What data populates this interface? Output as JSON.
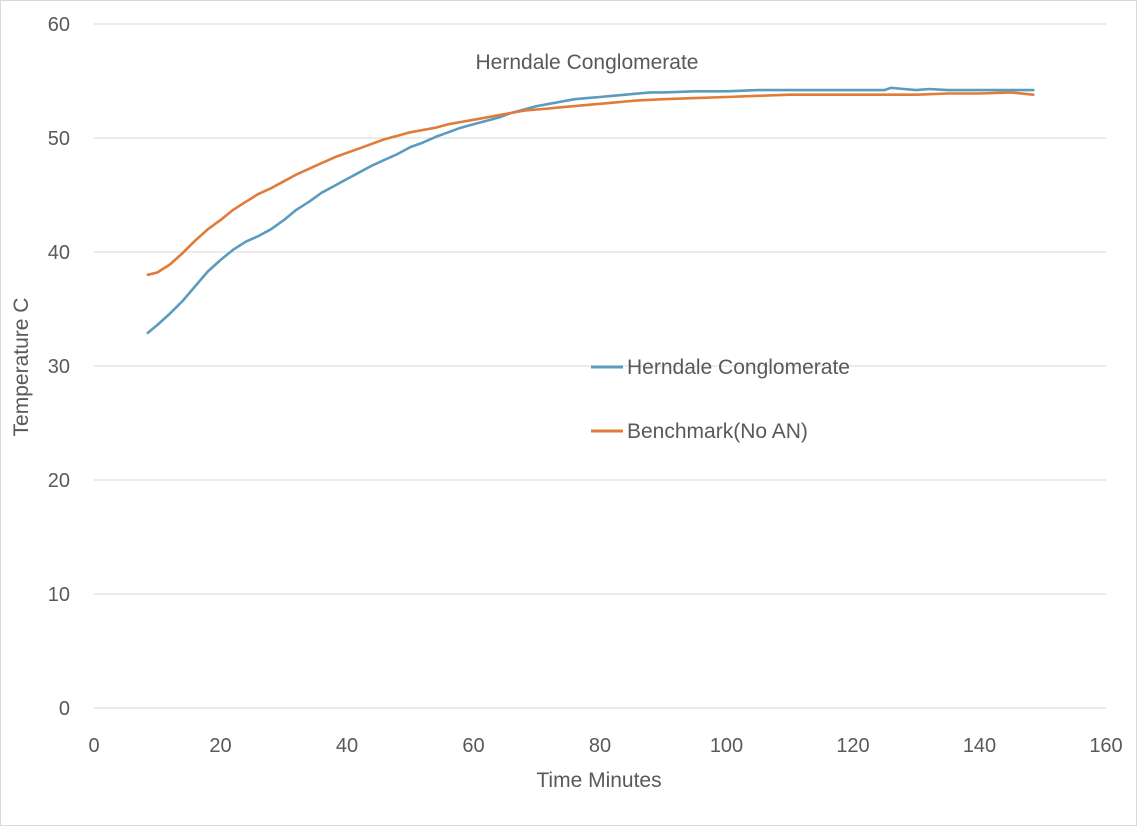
{
  "chart_data": {
    "type": "line",
    "title": "Herndale Conglomerate",
    "xlabel": "Time Minutes",
    "ylabel": "Temperature C",
    "xlim": [
      0,
      160
    ],
    "ylim": [
      0,
      60
    ],
    "x_ticks": [
      0,
      20,
      40,
      60,
      80,
      100,
      120,
      140,
      160
    ],
    "y_ticks": [
      0,
      10,
      20,
      30,
      40,
      50,
      60
    ],
    "grid": "horizontal",
    "legend_placement": "center-right",
    "series": [
      {
        "name": "Herndale Conglomerate",
        "color": "#5b9bbd",
        "points": [
          [
            8.5,
            32.9
          ],
          [
            10,
            33.6
          ],
          [
            12,
            34.6
          ],
          [
            14,
            35.7
          ],
          [
            16,
            37.0
          ],
          [
            18,
            38.3
          ],
          [
            20,
            39.3
          ],
          [
            22,
            40.2
          ],
          [
            24,
            40.9
          ],
          [
            26,
            41.4
          ],
          [
            28,
            42.0
          ],
          [
            30,
            42.8
          ],
          [
            32,
            43.7
          ],
          [
            34,
            44.4
          ],
          [
            36,
            45.2
          ],
          [
            38,
            45.8
          ],
          [
            40,
            46.4
          ],
          [
            42,
            47.0
          ],
          [
            44,
            47.6
          ],
          [
            46,
            48.1
          ],
          [
            48,
            48.6
          ],
          [
            50,
            49.2
          ],
          [
            52,
            49.6
          ],
          [
            54,
            50.1
          ],
          [
            56,
            50.5
          ],
          [
            58,
            50.9
          ],
          [
            60,
            51.2
          ],
          [
            62,
            51.5
          ],
          [
            64,
            51.8
          ],
          [
            66,
            52.2
          ],
          [
            68,
            52.5
          ],
          [
            70,
            52.8
          ],
          [
            72,
            53.0
          ],
          [
            74,
            53.2
          ],
          [
            76,
            53.4
          ],
          [
            78,
            53.5
          ],
          [
            80,
            53.6
          ],
          [
            82,
            53.7
          ],
          [
            84,
            53.8
          ],
          [
            86,
            53.9
          ],
          [
            88,
            54.0
          ],
          [
            90,
            54.0
          ],
          [
            95,
            54.1
          ],
          [
            100,
            54.1
          ],
          [
            105,
            54.2
          ],
          [
            110,
            54.2
          ],
          [
            115,
            54.2
          ],
          [
            120,
            54.2
          ],
          [
            125,
            54.2
          ],
          [
            126,
            54.4
          ],
          [
            128,
            54.3
          ],
          [
            130,
            54.2
          ],
          [
            132,
            54.3
          ],
          [
            135,
            54.2
          ],
          [
            140,
            54.2
          ],
          [
            145,
            54.2
          ],
          [
            148.5,
            54.2
          ]
        ]
      },
      {
        "name": "Benchmark(No AN)",
        "color": "#e07b39",
        "points": [
          [
            8.5,
            38.0
          ],
          [
            10,
            38.2
          ],
          [
            12,
            38.9
          ],
          [
            14,
            39.9
          ],
          [
            16,
            41.0
          ],
          [
            18,
            42.0
          ],
          [
            20,
            42.8
          ],
          [
            22,
            43.7
          ],
          [
            24,
            44.4
          ],
          [
            26,
            45.1
          ],
          [
            28,
            45.6
          ],
          [
            30,
            46.2
          ],
          [
            32,
            46.8
          ],
          [
            34,
            47.3
          ],
          [
            36,
            47.8
          ],
          [
            38,
            48.3
          ],
          [
            40,
            48.7
          ],
          [
            42,
            49.1
          ],
          [
            44,
            49.5
          ],
          [
            46,
            49.9
          ],
          [
            48,
            50.2
          ],
          [
            50,
            50.5
          ],
          [
            52,
            50.7
          ],
          [
            54,
            50.9
          ],
          [
            56,
            51.2
          ],
          [
            58,
            51.4
          ],
          [
            60,
            51.6
          ],
          [
            62,
            51.8
          ],
          [
            64,
            52.0
          ],
          [
            66,
            52.2
          ],
          [
            68,
            52.4
          ],
          [
            70,
            52.5
          ],
          [
            72,
            52.6
          ],
          [
            74,
            52.7
          ],
          [
            76,
            52.8
          ],
          [
            78,
            52.9
          ],
          [
            80,
            53.0
          ],
          [
            82,
            53.1
          ],
          [
            84,
            53.2
          ],
          [
            86,
            53.3
          ],
          [
            90,
            53.4
          ],
          [
            95,
            53.5
          ],
          [
            100,
            53.6
          ],
          [
            105,
            53.7
          ],
          [
            110,
            53.8
          ],
          [
            115,
            53.8
          ],
          [
            120,
            53.8
          ],
          [
            125,
            53.8
          ],
          [
            130,
            53.8
          ],
          [
            135,
            53.9
          ],
          [
            140,
            53.9
          ],
          [
            145,
            54.0
          ],
          [
            148.5,
            53.8
          ]
        ]
      }
    ]
  }
}
